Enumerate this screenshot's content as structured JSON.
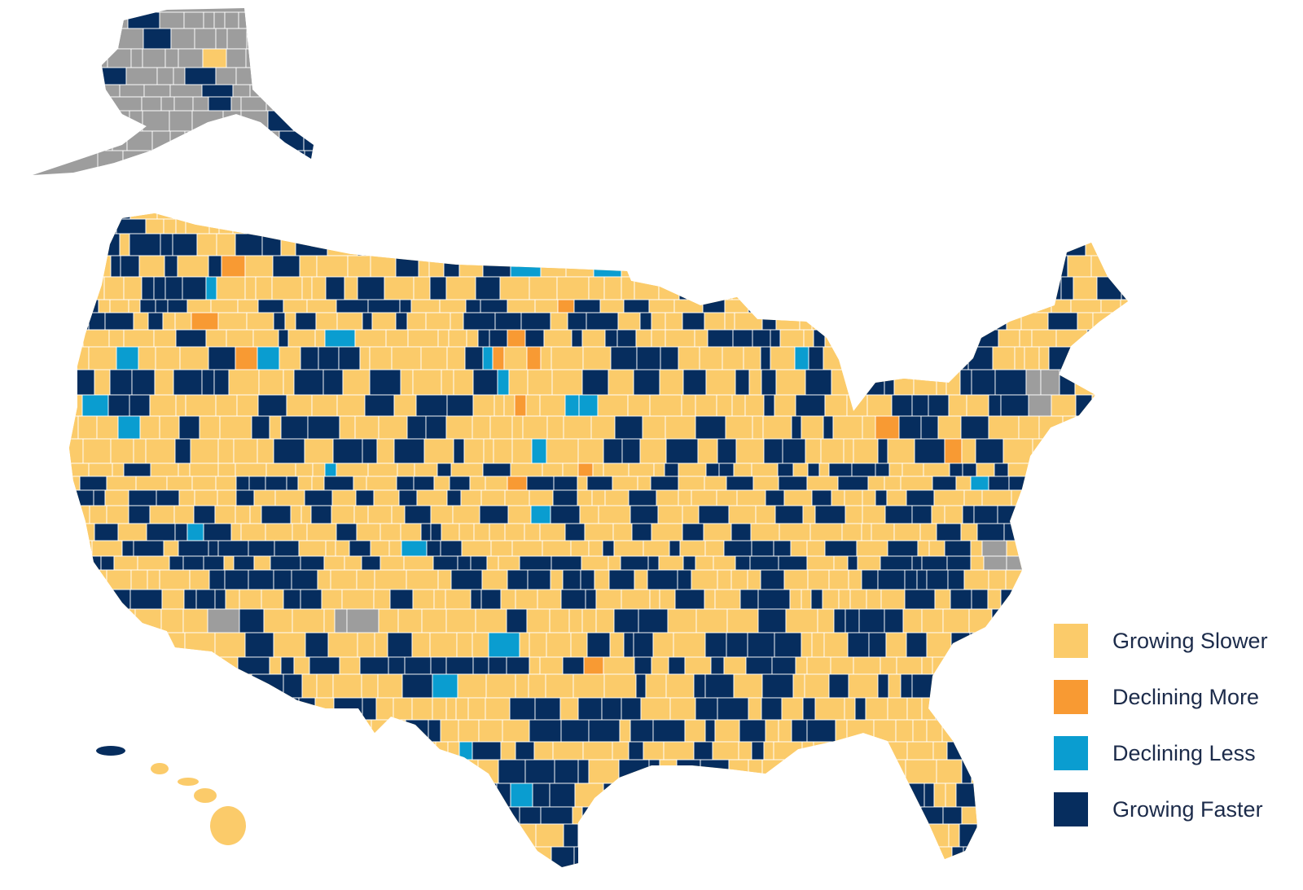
{
  "colors": {
    "growing_slower": "#fbcb6a",
    "declining_more": "#f89a33",
    "declining_less": "#0a9dd0",
    "growing_faster": "#062d5e",
    "no_data": "#9d9d9d",
    "county_border": "#ffffff"
  },
  "legend": {
    "items": [
      {
        "key": "growing_slower",
        "label": "Growing Slower"
      },
      {
        "key": "declining_more",
        "label": "Declining More"
      },
      {
        "key": "declining_less",
        "label": "Declining Less"
      },
      {
        "key": "growing_faster",
        "label": "Growing Faster"
      }
    ]
  },
  "map": {
    "regions": [
      "contiguous-us",
      "alaska",
      "hawaii"
    ]
  }
}
